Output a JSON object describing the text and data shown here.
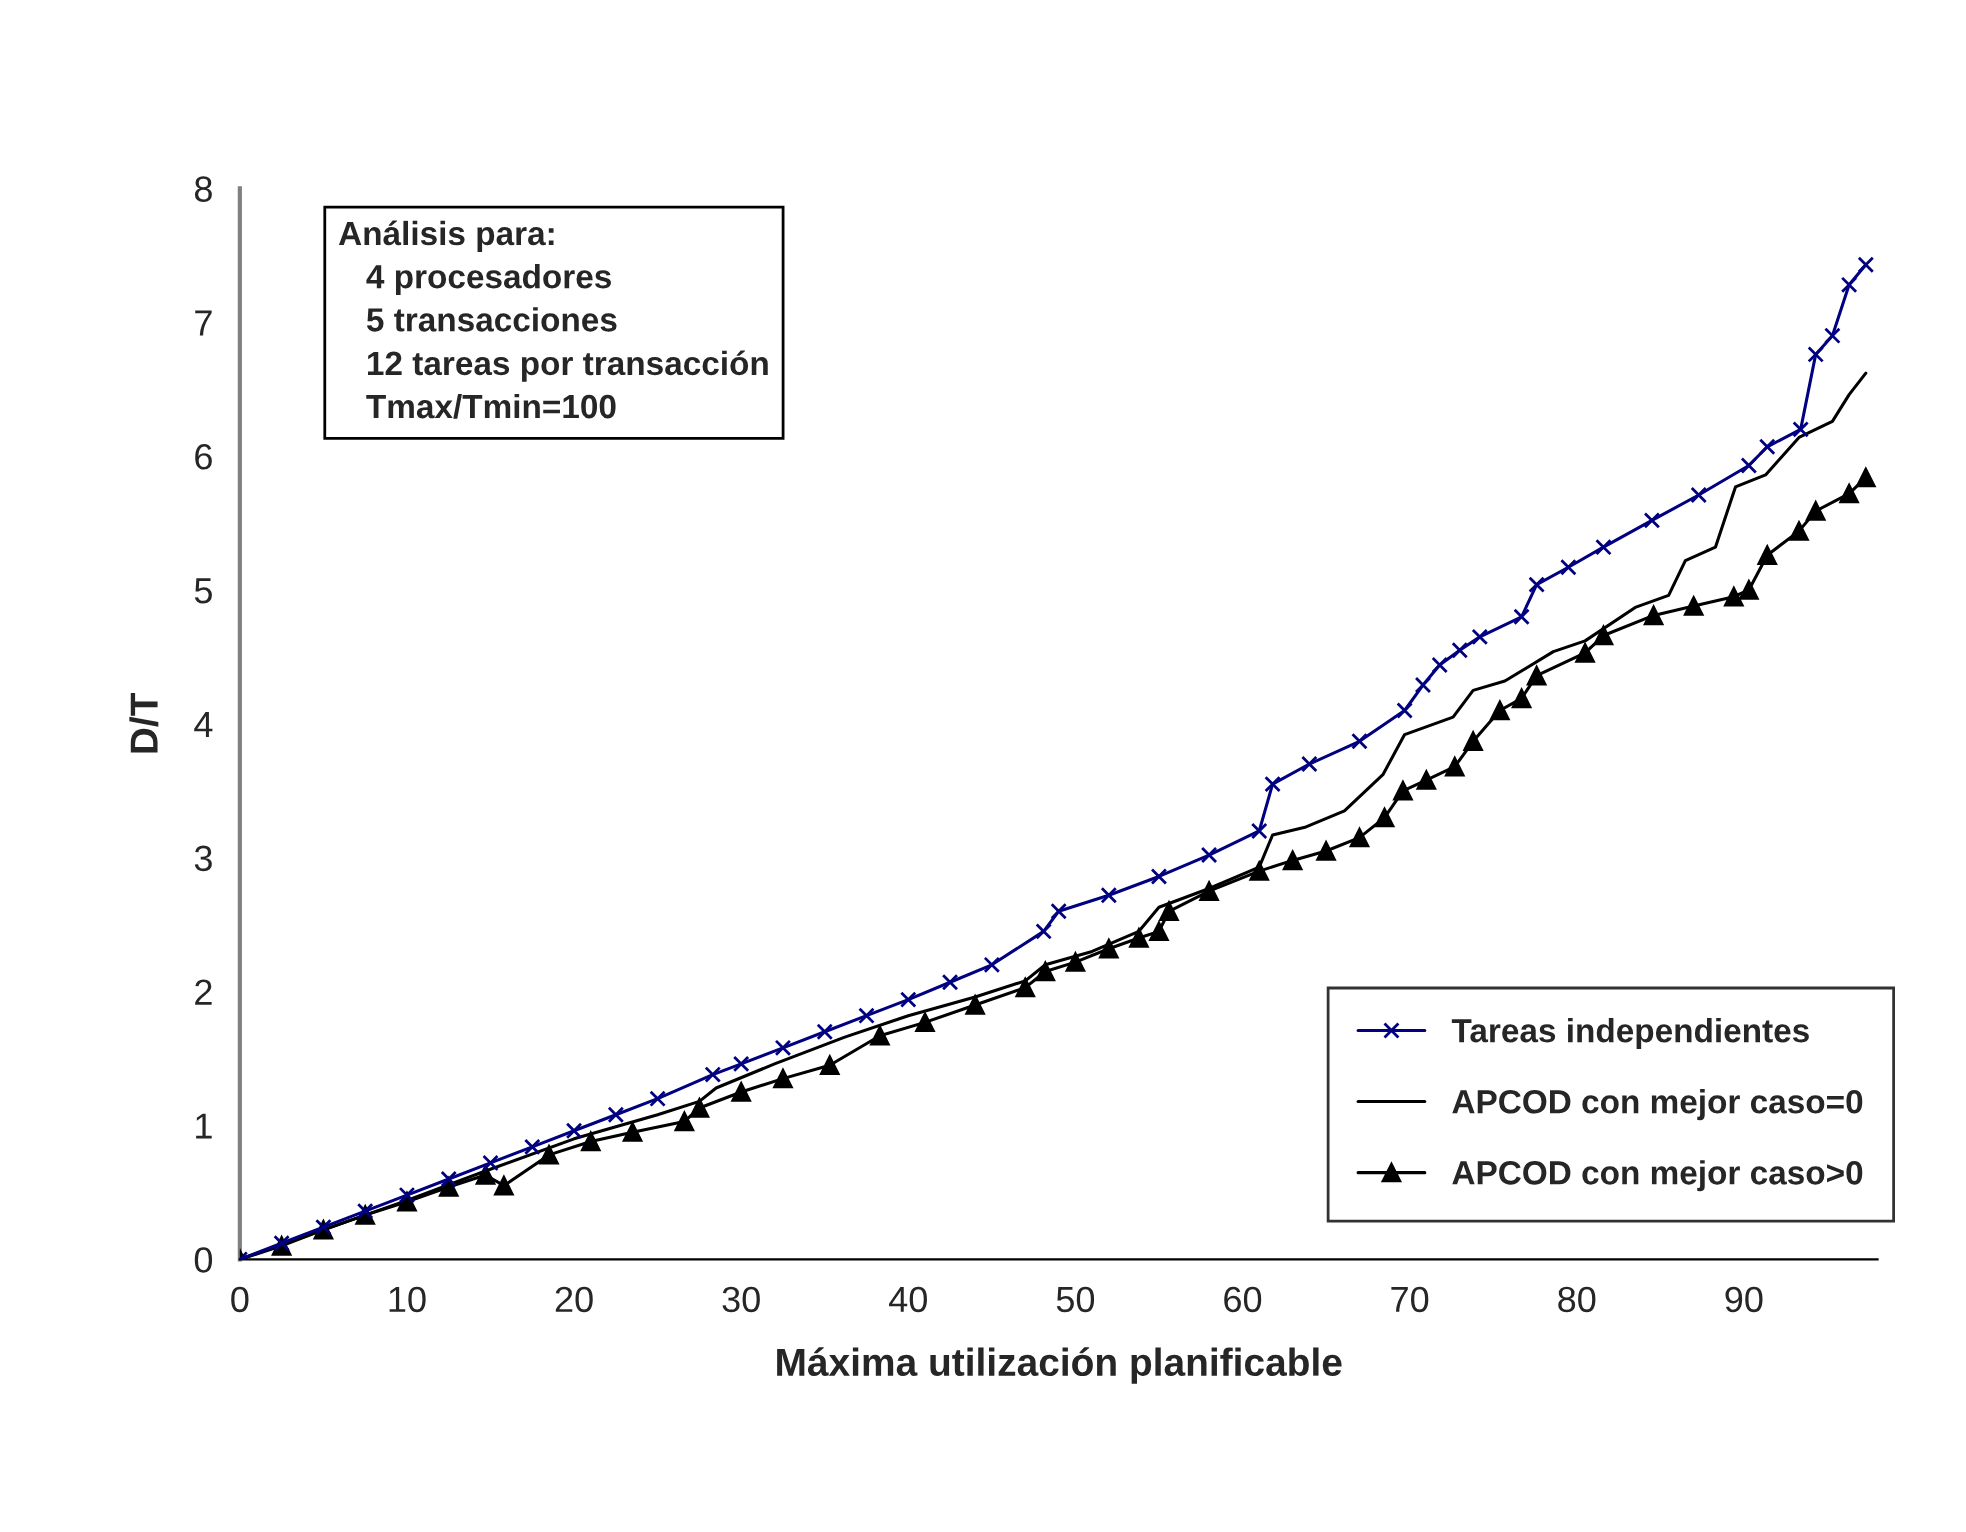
{
  "chart_data": {
    "type": "line",
    "xlabel": "Máxima utilización planificable",
    "ylabel": "D/T",
    "xlim": [
      0,
      98
    ],
    "xticks": [
      0,
      10,
      20,
      30,
      40,
      50,
      60,
      70,
      80,
      90
    ],
    "ylim": [
      0,
      8
    ],
    "yticks": [
      0,
      1,
      2,
      3,
      4,
      5,
      6,
      7,
      8
    ],
    "grid": false,
    "legend": "bottom right",
    "annotations": [
      "Análisis para:\n   4 procesadores\n   5 transacciones\n   12 tareas por transacción\n   Tmax/Tmin=100"
    ],
    "series": [
      {
        "name": "Tareas independientes",
        "color": "#000080",
        "marker": "cross",
        "x": [
          0,
          2.5,
          5,
          7.5,
          10,
          12.5,
          15,
          17.5,
          20,
          22.5,
          25,
          28.3,
          30,
          32.5,
          35,
          37.5,
          40,
          42.5,
          45,
          48.1,
          49,
          52,
          55,
          58,
          61,
          61.8,
          64,
          67,
          69.7,
          70.8,
          71.8,
          73,
          74.2,
          76.7,
          77.6,
          79.5,
          81.6,
          84.5,
          87.3,
          90.3,
          91.4,
          93.4,
          94.3,
          95.3,
          96.3,
          97.3
        ],
        "values": [
          0,
          0.12,
          0.24,
          0.36,
          0.48,
          0.6,
          0.72,
          0.84,
          0.96,
          1.08,
          1.2,
          1.38,
          1.46,
          1.58,
          1.7,
          1.82,
          1.94,
          2.07,
          2.2,
          2.45,
          2.6,
          2.72,
          2.86,
          3.02,
          3.2,
          3.55,
          3.7,
          3.87,
          4.1,
          4.29,
          4.44,
          4.55,
          4.65,
          4.8,
          5.04,
          5.17,
          5.32,
          5.52,
          5.71,
          5.93,
          6.07,
          6.2,
          6.76,
          6.9,
          7.28,
          7.43
        ]
      },
      {
        "name": "APCOD con mejor caso=0",
        "color": "#000000",
        "marker": "none",
        "x": [
          0,
          5,
          10,
          14.7,
          20,
          25,
          27.5,
          28.5,
          32,
          36.2,
          40,
          44,
          47,
          48.2,
          51,
          53.8,
          55,
          58,
          61,
          61.8,
          63.8,
          66.1,
          68.4,
          69.7,
          72.6,
          73.8,
          75.7,
          78.6,
          80.5,
          83.5,
          85.5,
          86.5,
          88.3,
          89.5,
          91.3,
          93.3,
          95.3,
          96.3,
          97.3
        ],
        "values": [
          0,
          0.22,
          0.44,
          0.66,
          0.9,
          1.08,
          1.18,
          1.28,
          1.46,
          1.66,
          1.82,
          1.96,
          2.08,
          2.2,
          2.3,
          2.45,
          2.63,
          2.77,
          2.93,
          3.17,
          3.23,
          3.35,
          3.62,
          3.92,
          4.05,
          4.25,
          4.32,
          4.54,
          4.62,
          4.87,
          4.96,
          5.22,
          5.32,
          5.77,
          5.86,
          6.14,
          6.26,
          6.46,
          6.62
        ]
      },
      {
        "name": "APCOD con mejor caso>0",
        "color": "#000000",
        "marker": "triangle",
        "x": [
          0,
          2.5,
          5,
          7.5,
          10,
          12.5,
          14.7,
          15.8,
          18.5,
          21,
          23.5,
          26.6,
          27.5,
          30,
          32.5,
          35.3,
          38.3,
          41,
          44,
          47,
          48.2,
          50,
          52,
          53.8,
          55,
          55.6,
          58,
          61,
          63,
          65,
          67,
          68.5,
          69.6,
          71,
          72.7,
          73.8,
          75.4,
          76.7,
          77.6,
          80.5,
          81.6,
          84.6,
          87,
          89.4,
          90.3,
          91.4,
          93.3,
          94.3,
          96.3,
          97.3
        ],
        "values": [
          0,
          0.1,
          0.22,
          0.33,
          0.43,
          0.54,
          0.63,
          0.55,
          0.78,
          0.88,
          0.95,
          1.03,
          1.13,
          1.25,
          1.35,
          1.45,
          1.67,
          1.77,
          1.9,
          2.03,
          2.15,
          2.22,
          2.32,
          2.4,
          2.45,
          2.6,
          2.75,
          2.9,
          2.98,
          3.05,
          3.15,
          3.3,
          3.5,
          3.58,
          3.68,
          3.87,
          4.1,
          4.19,
          4.36,
          4.53,
          4.66,
          4.81,
          4.88,
          4.95,
          5.0,
          5.26,
          5.44,
          5.59,
          5.72,
          5.84
        ]
      }
    ]
  }
}
